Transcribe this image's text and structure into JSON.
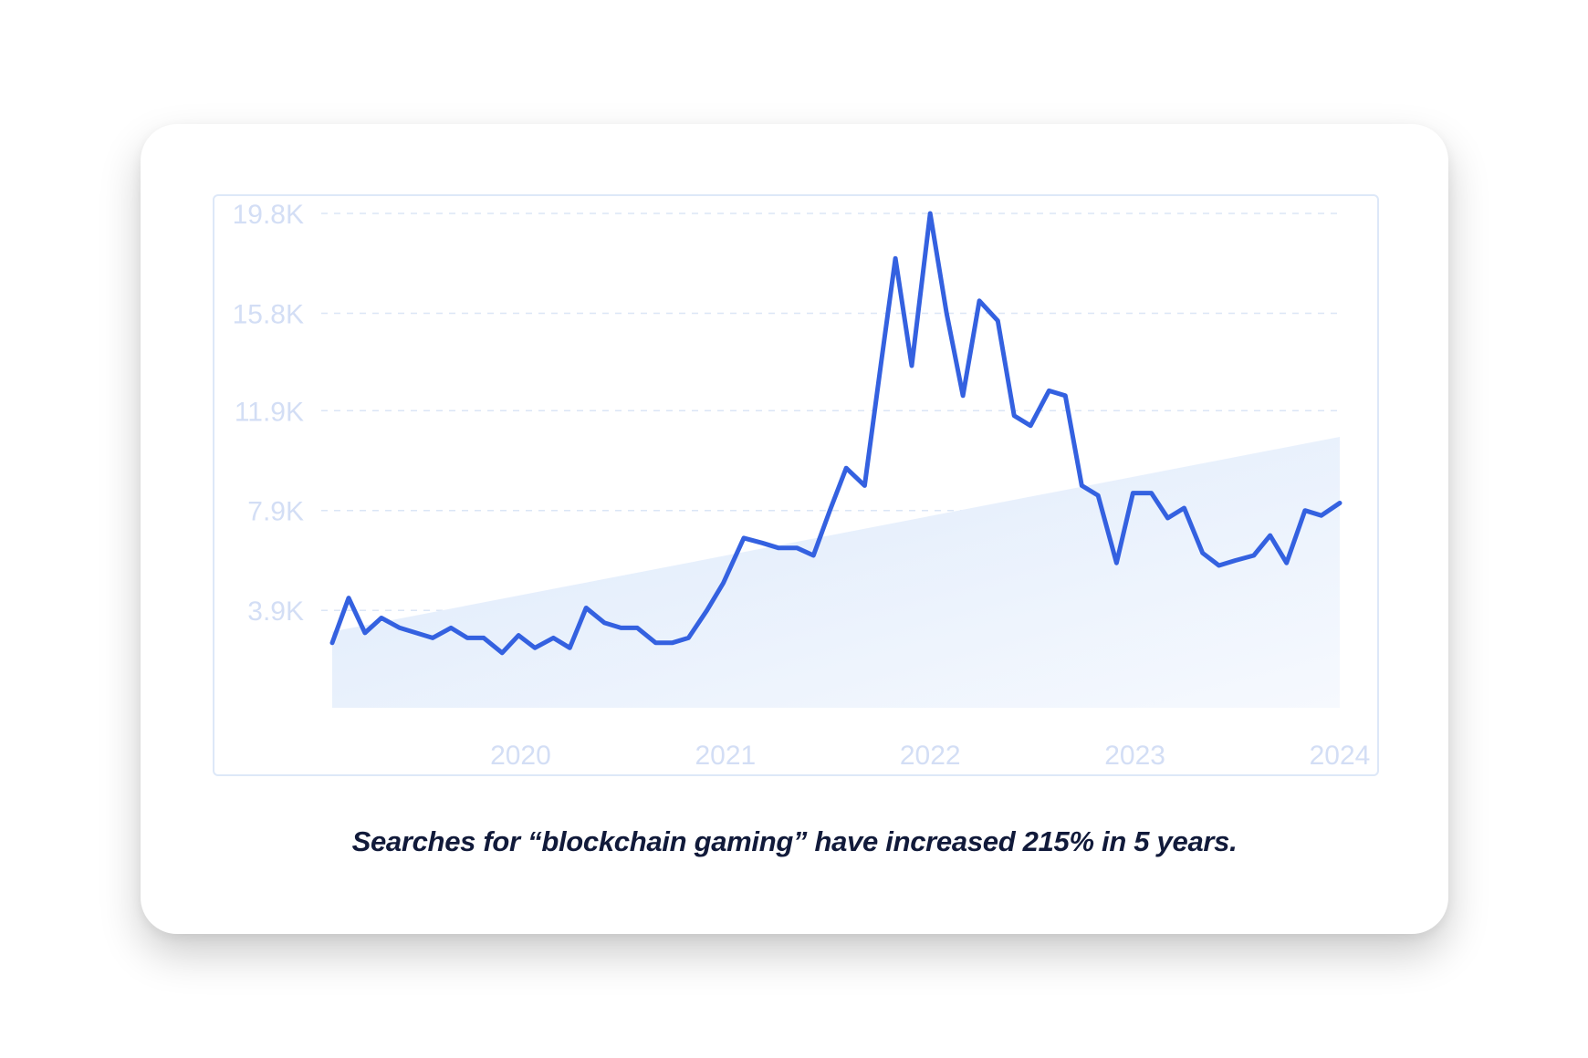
{
  "caption": "Searches for “blockchain gaming” have increased 215% in 5 years.",
  "colors": {
    "line": "#3461e0",
    "trend_fill_start": "#dce9fb",
    "trend_fill_end": "#f6f9fe",
    "grid": "#dbe6f6",
    "tick_label": "#d3def5",
    "caption": "#111a3a"
  },
  "chart_data": {
    "type": "line",
    "title": "",
    "xlabel": "",
    "ylabel": "",
    "y_ticks": [
      {
        "value": 3900,
        "label": "3.9K"
      },
      {
        "value": 7900,
        "label": "7.9K"
      },
      {
        "value": 11900,
        "label": "11.9K"
      },
      {
        "value": 15800,
        "label": "15.8K"
      },
      {
        "value": 19800,
        "label": "19.8K"
      }
    ],
    "x_ticks": [
      {
        "value": 2020,
        "label": "2020"
      },
      {
        "value": 2021,
        "label": "2021"
      },
      {
        "value": 2022,
        "label": "2022"
      },
      {
        "value": 2023,
        "label": "2023"
      },
      {
        "value": 2024,
        "label": "2024"
      }
    ],
    "xlim": [
      2019.08,
      2024
    ],
    "ylim": [
      0,
      19800
    ],
    "grid": true,
    "trend": {
      "type": "area",
      "x": [
        2019.08,
        2024
      ],
      "y": [
        3050,
        10850
      ]
    },
    "series": [
      {
        "x": [
          2019.08,
          2019.16,
          2019.24,
          2019.32,
          2019.41,
          2019.49,
          2019.57,
          2019.66,
          2019.74,
          2019.82,
          2019.91,
          2019.99,
          2020.07,
          2020.16,
          2020.24,
          2020.32,
          2020.41,
          2020.49,
          2020.57,
          2020.66,
          2020.74,
          2020.82,
          2020.91,
          2020.99,
          2021.09,
          2021.18,
          2021.26,
          2021.35,
          2021.43,
          2021.51,
          2021.59,
          2021.68,
          2021.76,
          2021.83,
          2021.91,
          2022.0,
          2022.08,
          2022.16,
          2022.24,
          2022.33,
          2022.41,
          2022.49,
          2022.58,
          2022.66,
          2022.74,
          2022.82,
          2022.91,
          2022.99,
          2023.08,
          2023.16,
          2023.24,
          2023.33,
          2023.41,
          2023.49,
          2023.58,
          2023.66,
          2023.74,
          2023.83,
          2023.91,
          2024.0
        ],
        "y": [
          2600,
          4400,
          3000,
          3600,
          3200,
          3000,
          2800,
          3200,
          2800,
          2800,
          2200,
          2900,
          2400,
          2800,
          2400,
          4000,
          3400,
          3200,
          3200,
          2600,
          2600,
          2800,
          3900,
          5000,
          6800,
          6600,
          6400,
          6400,
          6100,
          7900,
          9600,
          8900,
          13800,
          18000,
          13700,
          19800,
          15800,
          12500,
          16300,
          15500,
          11700,
          11300,
          12700,
          12500,
          8900,
          8500,
          5800,
          8600,
          8600,
          7600,
          8000,
          6200,
          5700,
          5900,
          6100,
          6900,
          5800,
          7900,
          7700,
          8200
        ]
      }
    ]
  }
}
